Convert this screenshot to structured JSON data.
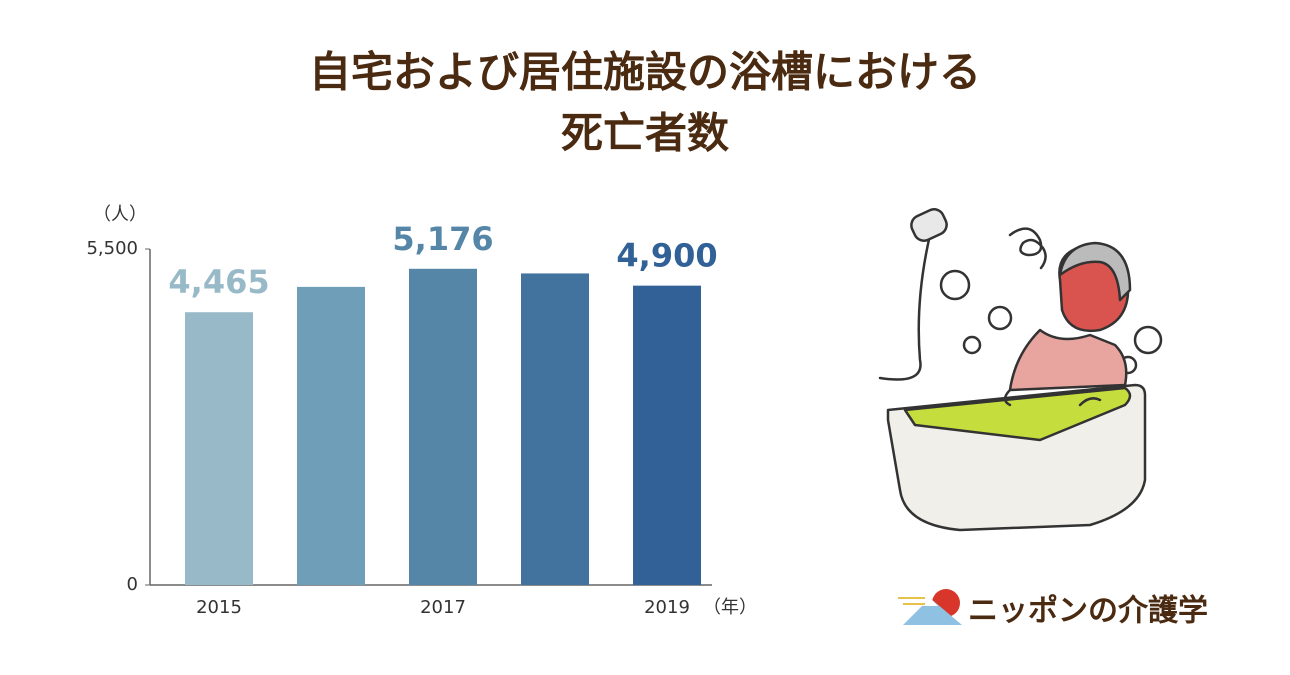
{
  "chart_data": {
    "type": "bar",
    "title": [
      "自宅および居住施設の浴槽における",
      "死亡者数"
    ],
    "y_unit": "（人）",
    "x_unit": "（年）",
    "categories": [
      "2015",
      null,
      "2017",
      null,
      "2019"
    ],
    "values": [
      4465,
      4880,
      5176,
      5100,
      4900
    ],
    "value_labels": [
      "4,465",
      null,
      "5,176",
      null,
      "4,900"
    ],
    "colors": [
      "#97b9c8",
      "#6f9fb8",
      "#5586a8",
      "#42739e",
      "#316196"
    ],
    "ylim": [
      0,
      5500
    ],
    "yticks": [
      0,
      {
        "value": 5500,
        "label": "5,500"
      }
    ],
    "grid": false
  },
  "logo": "ニッポンの介護学"
}
